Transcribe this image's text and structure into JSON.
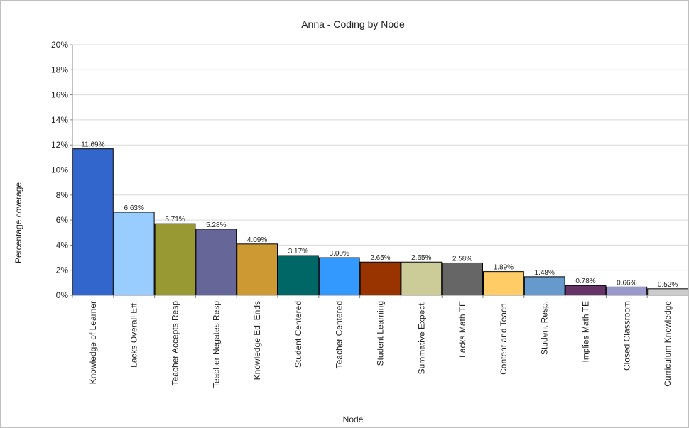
{
  "chart_data": {
    "type": "bar",
    "title": "Anna - Coding by Node",
    "xlabel": "Node",
    "ylabel": "Percentage coverage",
    "ylim": [
      0,
      20
    ],
    "yticks": [
      0,
      2,
      4,
      6,
      8,
      10,
      12,
      14,
      16,
      18,
      20
    ],
    "ytick_labels": [
      "0%",
      "2%",
      "4%",
      "6%",
      "8%",
      "10%",
      "12%",
      "14%",
      "16%",
      "18%",
      "20%"
    ],
    "grid": true,
    "legend": "none",
    "categories": [
      "Knowledge of Learner",
      "Lacks Overall Eff.",
      "Teacher Accepts Resp",
      "Teacher Negates Resp",
      "Knowledge Ed. Ends",
      "Student Centered",
      "Teacher Centered",
      "Student Learning",
      "Summative Expect.",
      "Lacks Math TE",
      "Content and Teach.",
      "Student Resp.",
      "Implies Math TE",
      "Closed Classroom",
      "Curriculum Knowledge"
    ],
    "values": [
      11.69,
      6.63,
      5.71,
      5.28,
      4.09,
      3.17,
      3.0,
      2.65,
      2.65,
      2.58,
      1.89,
      1.48,
      0.78,
      0.66,
      0.52
    ],
    "data_labels": [
      "11.69%",
      "6.63%",
      "5.71%",
      "5.28%",
      "4.09%",
      "3.17%",
      "3.00%",
      "2.65%",
      "2.65%",
      "2.58%",
      "1.89%",
      "1.48%",
      "0.78%",
      "0.66%",
      "0.52%"
    ],
    "colors": [
      "#3366cc",
      "#99ccff",
      "#999933",
      "#666699",
      "#cc9933",
      "#006666",
      "#3399ff",
      "#993300",
      "#cccc99",
      "#666666",
      "#ffcc66",
      "#6699cc",
      "#663366",
      "#9999cc",
      "#cccccc"
    ]
  }
}
